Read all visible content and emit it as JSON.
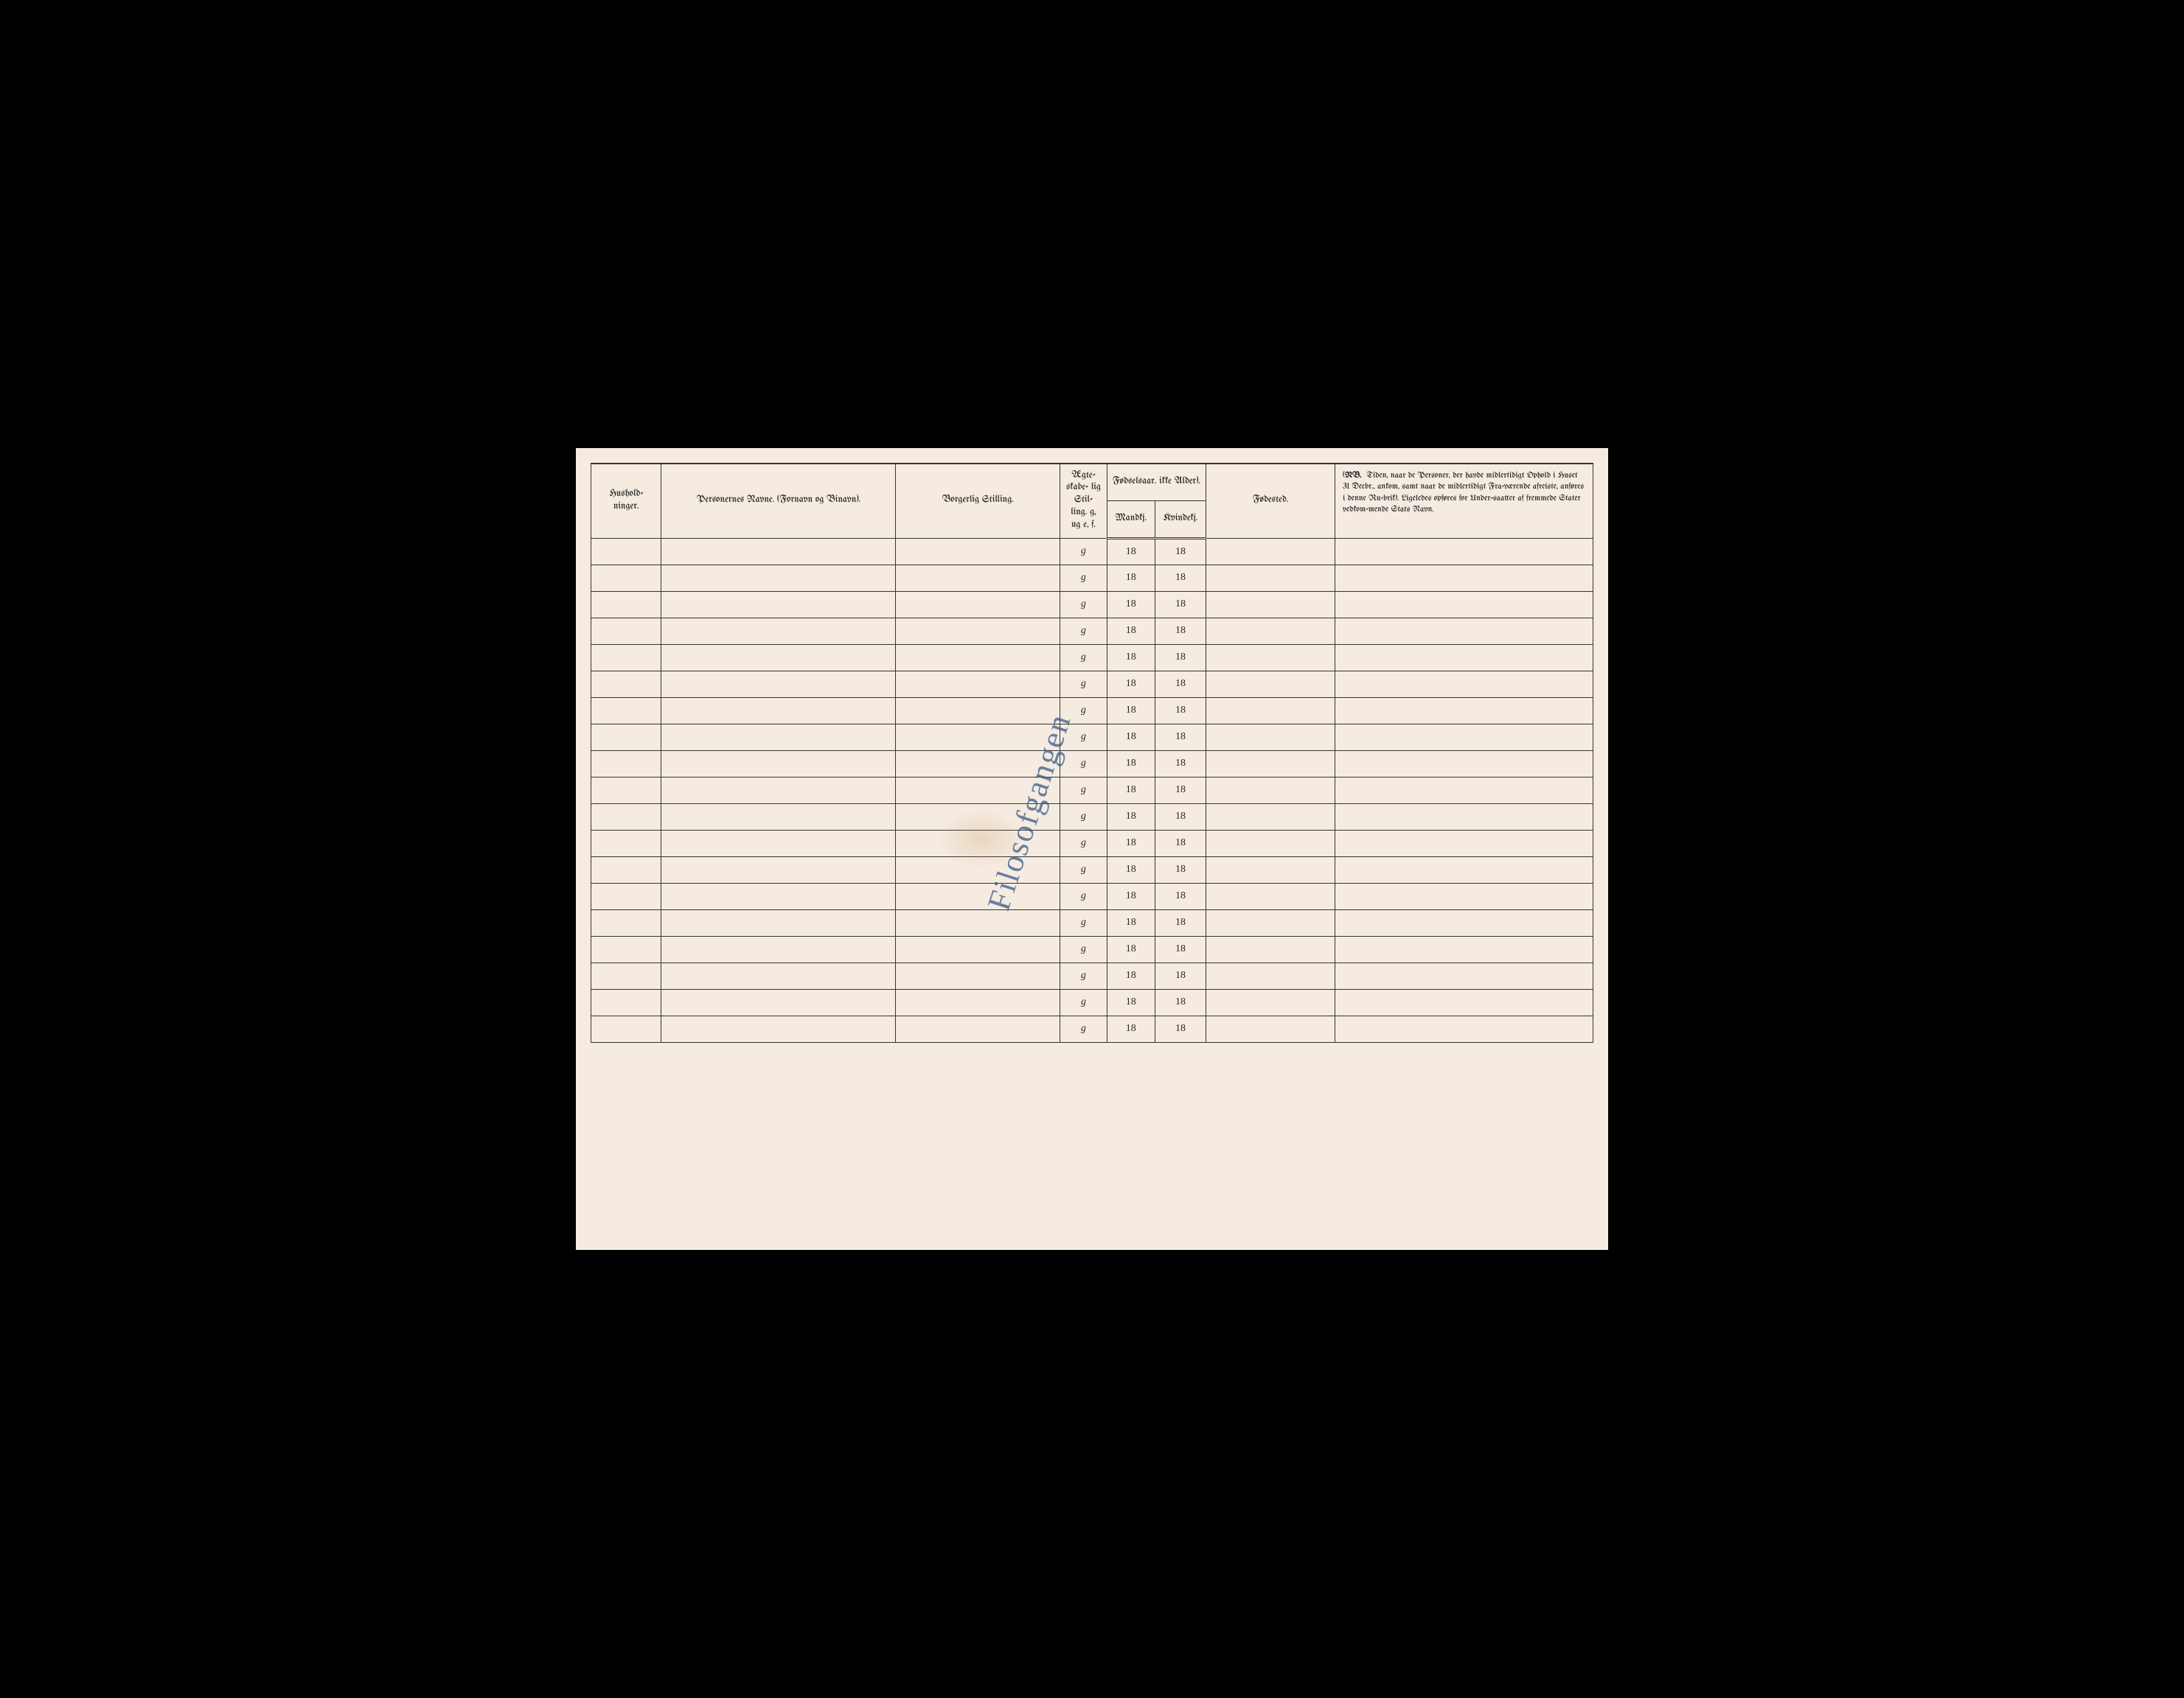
{
  "headers": {
    "hushold": "Hushold-\nninger.",
    "navne": "Personernes Navne.\n(Fornavn og Binavn).",
    "stilling": "Borgerlig Stilling.",
    "aegte": "Ægte-\nskabe-\nlig\nStil-\nling.\ng, ug\ne, f.",
    "fodselsaar": "Fødselsaar.\nikke Alder).",
    "mandkj": "Mandkj.",
    "kvindekj": "Kvindekj.",
    "fodested": "Fødested.",
    "nb_lead": "NB.",
    "nb_text": "Tiden, naar de Personer, der havde midlertidigt Ophold i Huset 31 Decbr., ankom, samt naar de midlertidigt Fra-værende afreiste, anføres i denne Ru-brik). Ligeledes opføres for Under-saatter af fremmede Stater vedkom-mende Stats Navn."
  },
  "rows": [
    {
      "g": "g",
      "m": "18",
      "k": "18"
    },
    {
      "g": "g",
      "m": "18",
      "k": "18"
    },
    {
      "g": "g",
      "m": "18",
      "k": "18"
    },
    {
      "g": "g",
      "m": "18",
      "k": "18"
    },
    {
      "g": "g",
      "m": "18",
      "k": "18"
    },
    {
      "g": "g",
      "m": "18",
      "k": "18"
    },
    {
      "g": "g",
      "m": "18",
      "k": "18"
    },
    {
      "g": "g",
      "m": "18",
      "k": "18"
    },
    {
      "g": "g",
      "m": "18",
      "k": "18"
    },
    {
      "g": "g",
      "m": "18",
      "k": "18"
    },
    {
      "g": "g",
      "m": "18",
      "k": "18"
    },
    {
      "g": "g",
      "m": "18",
      "k": "18"
    },
    {
      "g": "g",
      "m": "18",
      "k": "18"
    },
    {
      "g": "g",
      "m": "18",
      "k": "18"
    },
    {
      "g": "g",
      "m": "18",
      "k": "18"
    },
    {
      "g": "g",
      "m": "18",
      "k": "18"
    },
    {
      "g": "g",
      "m": "18",
      "k": "18"
    },
    {
      "g": "g",
      "m": "18",
      "k": "18"
    },
    {
      "g": "g",
      "m": "18",
      "k": "18"
    }
  ],
  "handwriting": "Filosofgangen",
  "colors": {
    "paper": "#f5ebe0",
    "ink": "#2a2a2a",
    "border": "#333333",
    "handwriting": "#3a5a8a",
    "background": "#000000"
  },
  "fonts": {
    "header_size": 13,
    "body_size": 14,
    "nb_size": 11.5,
    "handwriting_size": 44
  }
}
